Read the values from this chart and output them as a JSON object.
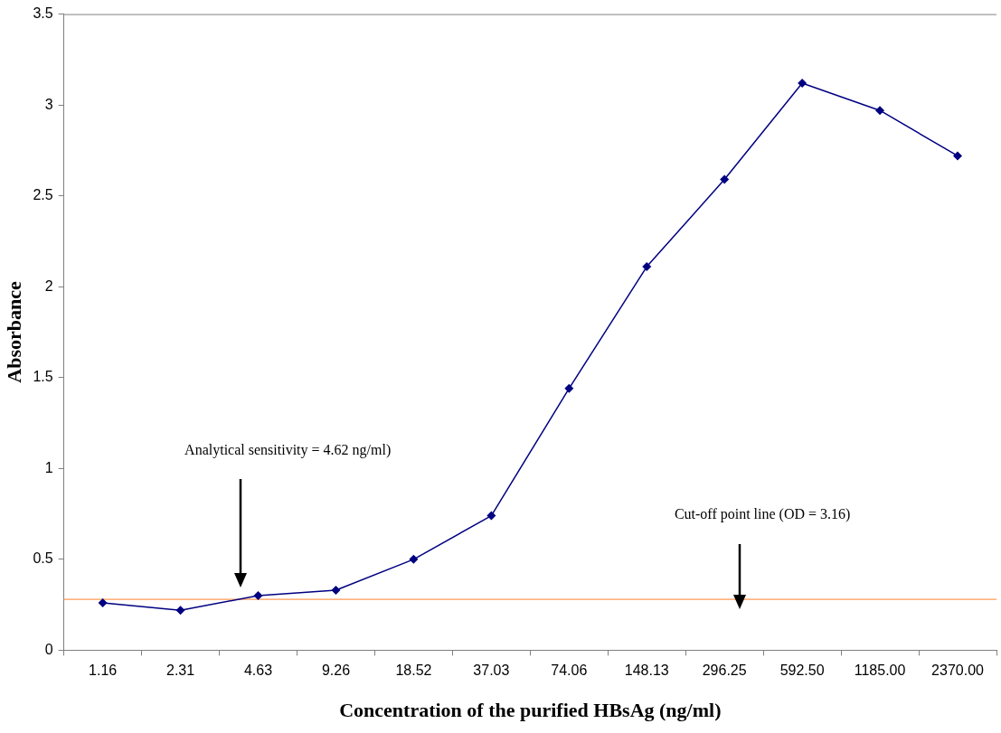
{
  "chart_data": {
    "type": "line",
    "xlabel": "Concentration of the purified HBsAg (ng/ml)",
    "ylabel": "Absorbance",
    "categories": [
      "1.16",
      "2.31",
      "4.63",
      "9.26",
      "18.52",
      "37.03",
      "74.06",
      "148.13",
      "296.25",
      "592.50",
      "1185.00",
      "2370.00"
    ],
    "series": [
      {
        "color": "#000080",
        "values": [
          0.26,
          0.22,
          0.3,
          0.33,
          0.5,
          0.74,
          1.44,
          2.11,
          2.59,
          3.12,
          2.97,
          2.72
        ]
      }
    ],
    "ylim": [
      0,
      3.5
    ],
    "yticks": [
      0,
      0.5,
      1,
      1.5,
      2,
      2.5,
      3,
      3.5
    ],
    "grid": false,
    "legend": false,
    "marker": "diamond",
    "line_style": "solid",
    "ref_lines": [
      {
        "axis": "y",
        "value": 0.28,
        "color": "#ff9955"
      }
    ],
    "annotations": [
      "Analytical sensitivity = 4.62 ng/ml)",
      "Cut-off point line (OD = 3.16)"
    ]
  }
}
